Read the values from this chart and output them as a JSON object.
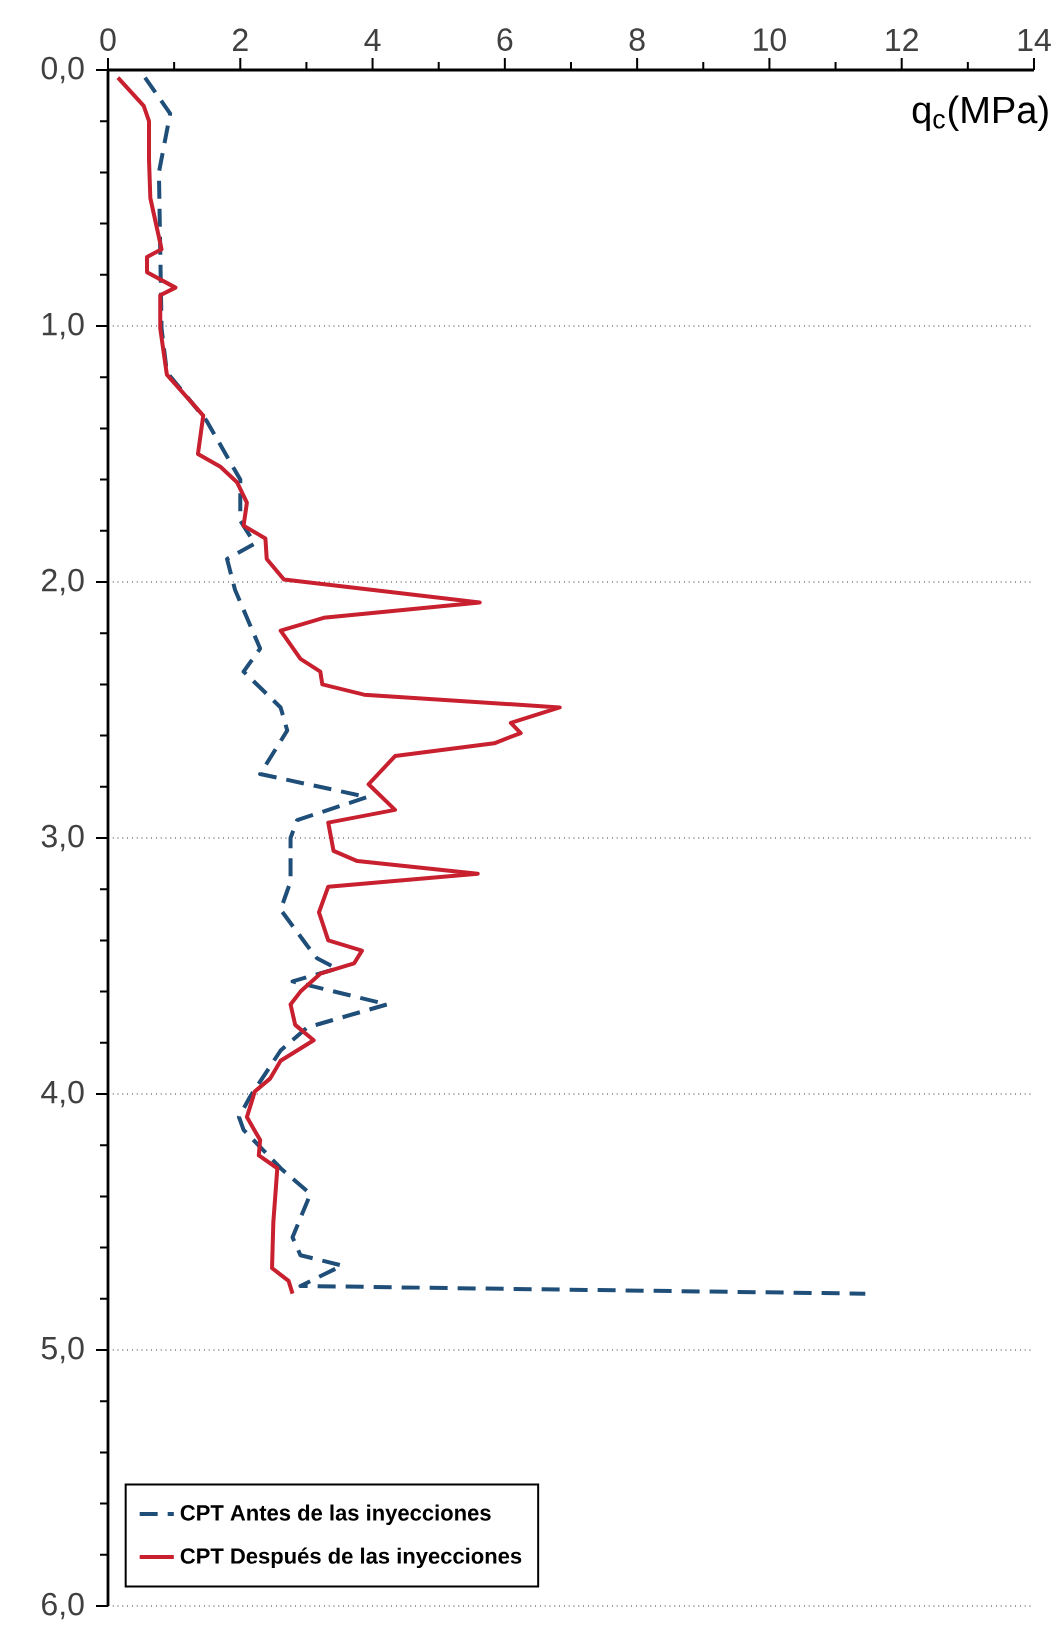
{
  "chart_data": {
    "type": "line",
    "xlabel": "q$_{c}$(MPa)",
    "xlim": [
      0,
      14
    ],
    "xticks": [
      0,
      2,
      4,
      6,
      8,
      10,
      12,
      14
    ],
    "ylim": [
      6,
      0
    ],
    "yticks": [
      {
        "value": 0,
        "label": "0,0"
      },
      {
        "value": 1,
        "label": "1,0"
      },
      {
        "value": 2,
        "label": "2,0"
      },
      {
        "value": 3,
        "label": "3,0"
      },
      {
        "value": 4,
        "label": "4,0"
      },
      {
        "value": 5,
        "label": "5,0"
      },
      {
        "value": 6,
        "label": "6,0"
      }
    ],
    "grid": "y",
    "legend": "bottom left",
    "series": [
      {
        "name": "CPT Antes de las inyecciones",
        "color": "#1f4e79",
        "line_style": "dashed",
        "x": [
          0.56,
          0.94,
          0.77,
          0.81,
          0.89,
          1.49,
          2.0,
          2.0,
          2.22,
          1.8,
          1.92,
          2.3,
          2.05,
          2.61,
          2.71,
          2.3,
          3.92,
          2.86,
          2.76,
          2.76,
          2.61,
          3.01,
          3.16,
          3.46,
          2.79,
          4.22,
          3.01,
          2.61,
          2.15,
          1.98,
          2.05,
          2.35,
          2.61,
          3.06,
          2.79,
          2.91,
          3.54,
          2.91,
          11.45
        ],
        "values": [
          0.03,
          0.17,
          0.4,
          1.01,
          1.18,
          1.37,
          1.6,
          1.76,
          1.85,
          1.91,
          2.03,
          2.26,
          2.35,
          2.49,
          2.58,
          2.75,
          2.84,
          2.93,
          3.0,
          3.17,
          3.28,
          3.42,
          3.47,
          3.51,
          3.56,
          3.65,
          3.74,
          3.83,
          4.01,
          4.09,
          4.14,
          4.22,
          4.29,
          4.39,
          4.56,
          4.63,
          4.67,
          4.75,
          4.78
        ]
      },
      {
        "name": "CPT Después de las inyecciones",
        "color": "#c8202f",
        "line_style": "solid",
        "x": [
          0.15,
          0.54,
          0.62,
          0.62,
          0.64,
          0.81,
          0.59,
          0.59,
          1.02,
          0.79,
          0.79,
          0.89,
          1.44,
          1.36,
          1.7,
          1.95,
          2.1,
          2.05,
          2.38,
          2.4,
          2.66,
          5.62,
          3.26,
          2.61,
          2.91,
          3.21,
          3.24,
          3.87,
          6.83,
          6.09,
          6.24,
          5.84,
          4.34,
          3.94,
          4.34,
          3.33,
          3.41,
          3.77,
          5.59,
          3.33,
          3.19,
          3.33,
          3.84,
          3.72,
          3.21,
          2.91,
          2.76,
          2.83,
          3.11,
          2.61,
          2.45,
          2.22,
          2.1,
          2.3,
          2.28,
          2.56,
          2.5,
          2.48,
          2.73,
          2.79
        ],
        "values": [
          0.03,
          0.14,
          0.2,
          0.35,
          0.5,
          0.7,
          0.73,
          0.79,
          0.85,
          0.88,
          1.01,
          1.19,
          1.35,
          1.5,
          1.55,
          1.61,
          1.69,
          1.78,
          1.83,
          1.91,
          1.99,
          2.08,
          2.14,
          2.19,
          2.3,
          2.35,
          2.4,
          2.44,
          2.49,
          2.55,
          2.59,
          2.63,
          2.68,
          2.79,
          2.89,
          2.94,
          3.05,
          3.09,
          3.14,
          3.19,
          3.29,
          3.4,
          3.44,
          3.49,
          3.53,
          3.6,
          3.65,
          3.73,
          3.79,
          3.87,
          3.94,
          3.99,
          4.09,
          4.18,
          4.24,
          4.29,
          4.5,
          4.68,
          4.73,
          4.78
        ]
      }
    ]
  }
}
